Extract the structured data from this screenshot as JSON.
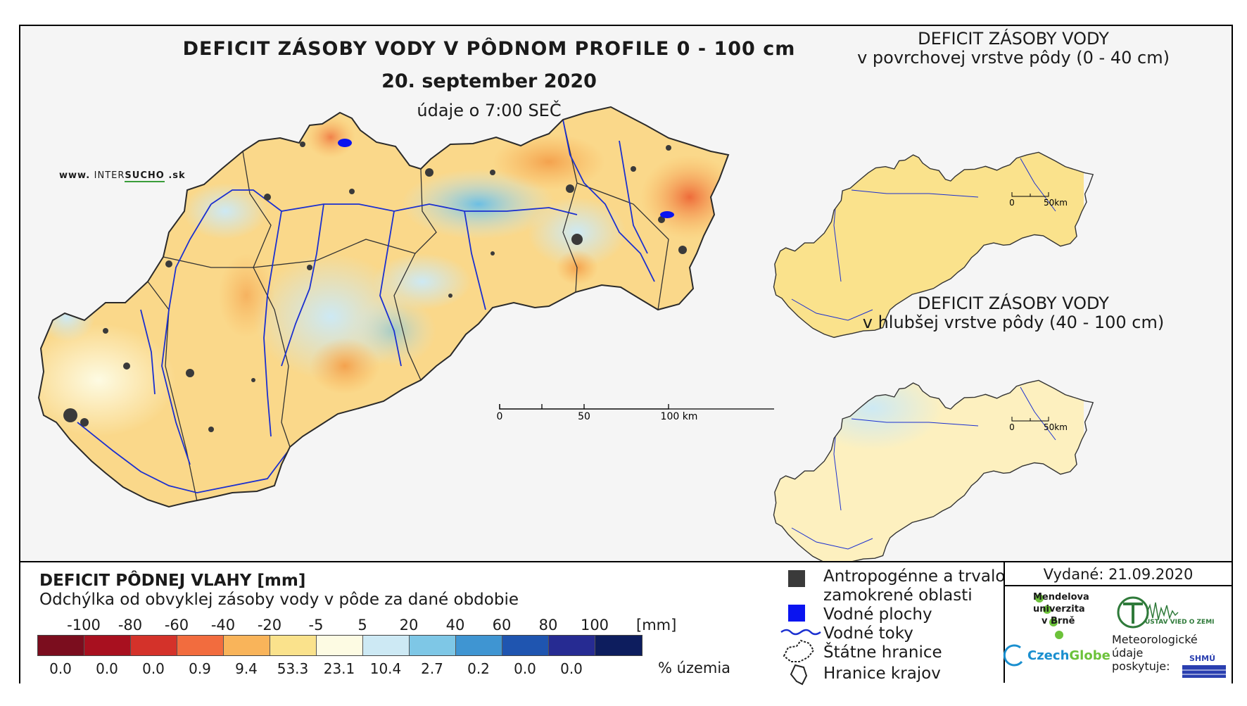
{
  "main_map": {
    "title": "DEFICIT ZÁSOBY VODY V PÔDNOM PROFILE 0 - 100 cm",
    "date": "20. september 2020",
    "time_note": "údaje o 7:00 SEČ",
    "website": {
      "prefix": "www.",
      "brand": "INTER",
      "brand_bold": "SUCHO",
      "suffix": ".sk"
    },
    "scale_bar": {
      "labels": [
        "0",
        "50",
        "100 km"
      ]
    }
  },
  "inset_top": {
    "title_line1": "DEFICIT ZÁSOBY VODY",
    "title_line2": "v povrchovej vrstve pôdy (0 - 40 cm)",
    "scale_bar": {
      "labels": [
        "0",
        "50km"
      ]
    }
  },
  "inset_bottom": {
    "title_line1": "DEFICIT ZÁSOBY VODY",
    "title_line2": "v hlubšej vrstve pôdy (40 - 100 cm)",
    "scale_bar": {
      "labels": [
        "0",
        "50km"
      ]
    }
  },
  "legend": {
    "title": "DEFICIT PÔDNEJ VLAHY [mm]",
    "subtitle": "Odchýlka od obvyklej zásoby vody v pôde za dané obdobie",
    "bin_labels": [
      "-100",
      "-80",
      "-60",
      "-40",
      "-20",
      "-5",
      "5",
      "20",
      "40",
      "60",
      "80",
      "100"
    ],
    "unit": "[mm]",
    "colors": [
      "#7b0d1e",
      "#a8101f",
      "#d4322a",
      "#f26c3e",
      "#f9b45a",
      "#fae28c",
      "#fdfbe3",
      "#cde9f4",
      "#7ec7e6",
      "#3f95d2",
      "#1f55b0",
      "#262b92",
      "#0d1d5e"
    ],
    "percentages": [
      "0.0",
      "0.0",
      "0.0",
      "0.9",
      "9.4",
      "53.3",
      "23.1",
      "10.4",
      "2.7",
      "0.2",
      "0.0",
      "0.0"
    ],
    "percent_unit": "% územia"
  },
  "symbols": {
    "anthropogenic_line1": "Antropogénne a trvalo",
    "anthropogenic_line2": "zamokrené oblasti",
    "water_bodies": "Vodné plochy",
    "water_streams": "Vodné toky",
    "state_border": "Štátne hranice",
    "region_border": "Hranice krajov",
    "colors": {
      "anthropogenic": "#3a3a3a",
      "water_body": "#0a14f0",
      "stream": "#1a2fd0"
    }
  },
  "credits": {
    "issued": "Vydané: 21.09.2020",
    "mendel": [
      "Mendelova",
      "univerzita",
      "v Brně"
    ],
    "uvz": "ÚSTAV VIED O ZEMI",
    "czechglobe_a": "Czech",
    "czechglobe_b": "Globe",
    "meteo": [
      "Meteorologické",
      "údaje",
      "poskytuje:"
    ],
    "shmu": "SHMÚ"
  }
}
